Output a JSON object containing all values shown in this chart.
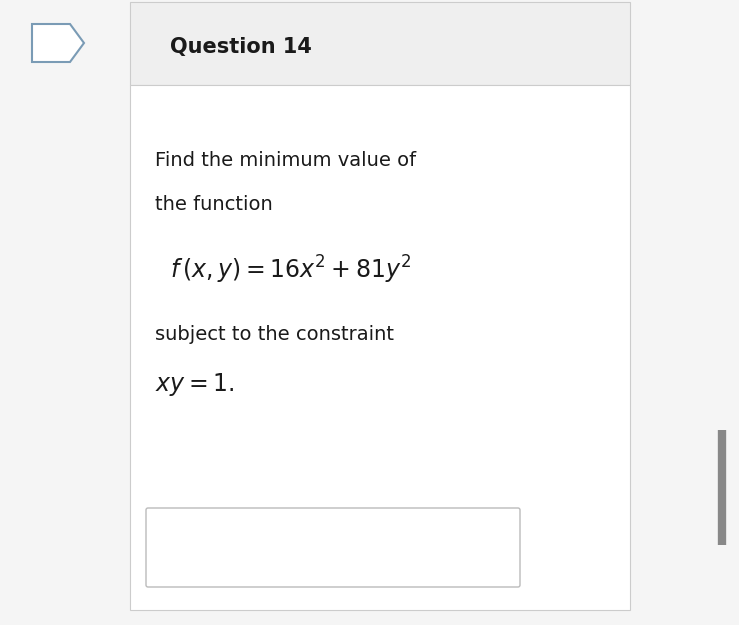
{
  "title": "Question 14",
  "line1": "Find the minimum value of",
  "line2": "the function",
  "formula": "$f\\,(x, y) = 16x^2 + 81y^2$",
  "line3": "subject to the constraint",
  "constraint": "$xy = 1.$",
  "bg_color": "#f5f5f5",
  "header_bg": "#efefef",
  "content_bg": "#ffffff",
  "text_color": "#1a1a1a",
  "border_color": "#cccccc",
  "icon_stroke": "#7a9bb5",
  "title_fontsize": 15,
  "body_fontsize": 14,
  "formula_fontsize": 17,
  "constraint_fontsize": 17,
  "right_bar_color": "#888888"
}
